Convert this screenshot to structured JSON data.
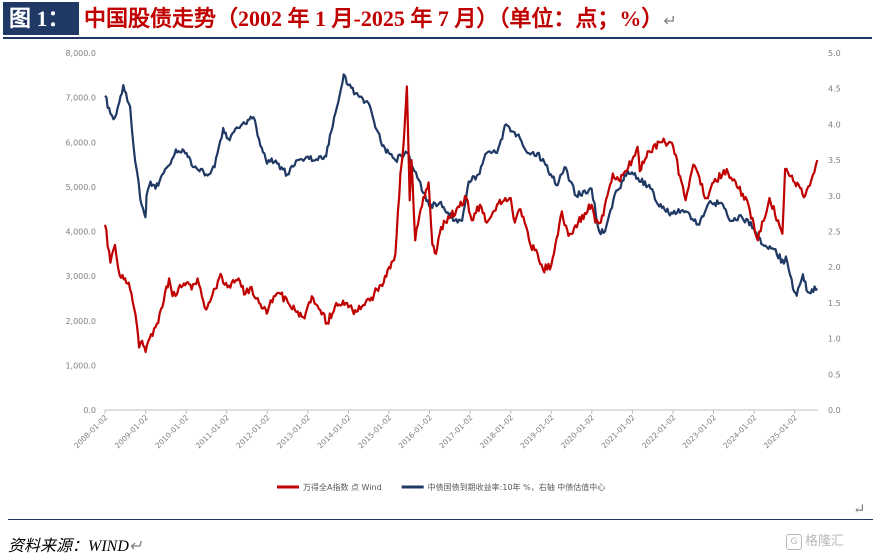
{
  "header": {
    "label": "图 1：",
    "title": "中国股债走势（2002 年 1 月-2025 年 7 月）（单位：点；%）",
    "return_mark": "↵"
  },
  "footer": {
    "source": "资料来源：WIND",
    "return_mark": "↵",
    "watermark": "格隆汇"
  },
  "colors": {
    "equity": "#c00000",
    "bond": "#1f3864",
    "axis_text": "#7f7f7f",
    "header_bg": "#1f3864"
  },
  "chart_data": {
    "type": "line",
    "x_dates": [
      "2008-01-02",
      "2009-01-02",
      "2010-01-02",
      "2011-01-02",
      "2012-01-02",
      "2013-01-02",
      "2014-01-02",
      "2015-01-02",
      "2016-01-02",
      "2017-01-02",
      "2018-01-02",
      "2019-01-02",
      "2020-01-02",
      "2021-01-02",
      "2022-01-02",
      "2023-01-02",
      "2024-01-02",
      "2025-01-02"
    ],
    "x_ticks": [
      "2008-01-02",
      "2009-01-02",
      "2010-01-02",
      "2011-01-02",
      "2012-01-02",
      "2013-01-02",
      "2014-01-02",
      "2015-01-02",
      "2016-01-02",
      "2017-01-02",
      "2018-01-02",
      "2019-01-02",
      "2020-01-02",
      "2021-01-02",
      "2022-01-02",
      "2023-01-02",
      "2024-01-02",
      "2025-01-02"
    ],
    "y_left_ticks": [
      "0.0",
      "1,000.0",
      "2,000.0",
      "3,000.0",
      "4,000.0",
      "5,000.0",
      "6,000.0",
      "7,000.0",
      "8,000.0"
    ],
    "y_right_ticks": [
      "0.0",
      "0.5",
      "1.0",
      "1.5",
      "2.0",
      "2.5",
      "3.0",
      "3.5",
      "4.0",
      "4.5",
      "5.0"
    ],
    "ylim_left": [
      0,
      8000
    ],
    "ylim_right": [
      0,
      5.0
    ],
    "grid": false,
    "legend_position": "bottom-center",
    "series": [
      {
        "name": "万得全A指数 点 Wind",
        "axis": "left",
        "points": [
          [
            "2008-01-02",
            4150
          ],
          [
            "2008-02-20",
            3300
          ],
          [
            "2008-04-01",
            3700
          ],
          [
            "2008-05-15",
            3000
          ],
          [
            "2008-07-01",
            2950
          ],
          [
            "2008-08-15",
            2700
          ],
          [
            "2008-09-18",
            2300
          ],
          [
            "2008-10-15",
            1900
          ],
          [
            "2008-11-04",
            1400
          ],
          [
            "2008-12-01",
            1550
          ],
          [
            "2009-01-02",
            1300
          ],
          [
            "2009-02-20",
            1700
          ],
          [
            "2009-04-01",
            1850
          ],
          [
            "2009-06-01",
            2300
          ],
          [
            "2009-08-01",
            2950
          ],
          [
            "2009-09-01",
            2550
          ],
          [
            "2009-11-20",
            2750
          ],
          [
            "2010-01-04",
            2850
          ],
          [
            "2010-02-20",
            2700
          ],
          [
            "2010-04-15",
            2950
          ],
          [
            "2010-07-01",
            2250
          ],
          [
            "2010-08-15",
            2500
          ],
          [
            "2010-11-08",
            3050
          ],
          [
            "2010-12-01",
            2850
          ],
          [
            "2011-01-10",
            2750
          ],
          [
            "2011-04-18",
            2950
          ],
          [
            "2011-06-20",
            2600
          ],
          [
            "2011-08-01",
            2750
          ],
          [
            "2011-10-20",
            2400
          ],
          [
            "2011-12-20",
            2250
          ],
          [
            "2012-01-05",
            2200
          ],
          [
            "2012-03-01",
            2550
          ],
          [
            "2012-05-01",
            2600
          ],
          [
            "2012-08-01",
            2300
          ],
          [
            "2012-12-03",
            2050
          ],
          [
            "2013-01-04",
            2350
          ],
          [
            "2013-02-06",
            2550
          ],
          [
            "2013-06-25",
            1950
          ],
          [
            "2013-09-15",
            2400
          ],
          [
            "2013-11-15",
            2450
          ],
          [
            "2014-01-02",
            2300
          ],
          [
            "2014-03-15",
            2200
          ],
          [
            "2014-05-15",
            2350
          ],
          [
            "2014-07-15",
            2450
          ],
          [
            "2014-09-15",
            2700
          ],
          [
            "2014-11-15",
            2850
          ],
          [
            "2015-01-02",
            3200
          ],
          [
            "2015-03-01",
            3500
          ],
          [
            "2015-04-15",
            5300
          ],
          [
            "2015-05-15",
            6000
          ],
          [
            "2015-06-12",
            7250
          ],
          [
            "2015-07-08",
            4700
          ],
          [
            "2015-07-24",
            5600
          ],
          [
            "2015-08-26",
            3800
          ],
          [
            "2015-10-15",
            4500
          ],
          [
            "2015-12-25",
            5100
          ],
          [
            "2016-01-28",
            3700
          ],
          [
            "2016-02-29",
            3500
          ],
          [
            "2016-04-15",
            4100
          ],
          [
            "2016-07-01",
            4300
          ],
          [
            "2016-09-01",
            4500
          ],
          [
            "2016-11-29",
            4750
          ],
          [
            "2017-01-16",
            4250
          ],
          [
            "2017-04-01",
            4600
          ],
          [
            "2017-06-01",
            4200
          ],
          [
            "2017-09-01",
            4600
          ],
          [
            "2017-11-14",
            4750
          ],
          [
            "2018-01-02",
            4750
          ],
          [
            "2018-02-09",
            4200
          ],
          [
            "2018-04-01",
            4500
          ],
          [
            "2018-06-29",
            3700
          ],
          [
            "2018-09-01",
            3500
          ],
          [
            "2018-10-19",
            3150
          ],
          [
            "2019-01-03",
            3250
          ],
          [
            "2019-04-08",
            4450
          ],
          [
            "2019-06-06",
            3900
          ],
          [
            "2019-09-01",
            4200
          ],
          [
            "2019-12-31",
            4600
          ],
          [
            "2020-02-03",
            4200
          ],
          [
            "2020-03-23",
            4200
          ],
          [
            "2020-07-09",
            5300
          ],
          [
            "2020-09-01",
            5150
          ],
          [
            "2020-12-31",
            5600
          ],
          [
            "2021-02-18",
            5900
          ],
          [
            "2021-03-09",
            5350
          ],
          [
            "2021-06-01",
            5800
          ],
          [
            "2021-09-14",
            6000
          ],
          [
            "2021-12-13",
            6000
          ],
          [
            "2022-01-04",
            5900
          ],
          [
            "2022-04-26",
            4700
          ],
          [
            "2022-07-04",
            5500
          ],
          [
            "2022-10-31",
            4750
          ],
          [
            "2023-01-03",
            5100
          ],
          [
            "2023-05-01",
            5400
          ],
          [
            "2023-08-01",
            5000
          ],
          [
            "2023-11-01",
            4700
          ],
          [
            "2024-02-05",
            3800
          ],
          [
            "2024-05-20",
            4750
          ],
          [
            "2024-09-13",
            3950
          ],
          [
            "2024-10-08",
            5400
          ],
          [
            "2024-11-15",
            5250
          ],
          [
            "2025-01-02",
            5100
          ],
          [
            "2025-04-07",
            4800
          ],
          [
            "2025-06-01",
            5150
          ],
          [
            "2025-07-25",
            5600
          ]
        ]
      },
      {
        "name": "中债国债到期收益率:10年 %，右轴 中债估值中心",
        "axis": "right",
        "points": [
          [
            "2008-01-02",
            4.4
          ],
          [
            "2008-02-20",
            4.15
          ],
          [
            "2008-04-01",
            4.1
          ],
          [
            "2008-06-15",
            4.55
          ],
          [
            "2008-08-15",
            4.25
          ],
          [
            "2008-09-15",
            3.7
          ],
          [
            "2008-10-15",
            3.35
          ],
          [
            "2008-11-15",
            2.95
          ],
          [
            "2008-12-31",
            2.7
          ],
          [
            "2009-01-10",
            3.0
          ],
          [
            "2009-02-15",
            3.2
          ],
          [
            "2009-04-01",
            3.1
          ],
          [
            "2009-06-01",
            3.3
          ],
          [
            "2009-08-15",
            3.45
          ],
          [
            "2009-10-01",
            3.65
          ],
          [
            "2009-12-01",
            3.65
          ],
          [
            "2010-01-04",
            3.6
          ],
          [
            "2010-03-15",
            3.4
          ],
          [
            "2010-07-01",
            3.3
          ],
          [
            "2010-09-15",
            3.4
          ],
          [
            "2010-12-01",
            3.95
          ],
          [
            "2011-01-15",
            3.8
          ],
          [
            "2011-04-15",
            3.95
          ],
          [
            "2011-08-31",
            4.1
          ],
          [
            "2011-11-01",
            3.7
          ],
          [
            "2011-12-31",
            3.45
          ],
          [
            "2012-01-15",
            3.5
          ],
          [
            "2012-04-01",
            3.45
          ],
          [
            "2012-07-01",
            3.3
          ],
          [
            "2012-10-01",
            3.5
          ],
          [
            "2012-12-31",
            3.55
          ],
          [
            "2013-04-01",
            3.5
          ],
          [
            "2013-06-15",
            3.55
          ],
          [
            "2013-08-01",
            3.9
          ],
          [
            "2013-11-20",
            4.7
          ],
          [
            "2014-01-02",
            4.55
          ],
          [
            "2014-04-01",
            4.4
          ],
          [
            "2014-07-01",
            4.3
          ],
          [
            "2014-11-01",
            3.7
          ],
          [
            "2014-12-31",
            3.6
          ],
          [
            "2015-03-01",
            3.5
          ],
          [
            "2015-06-15",
            3.6
          ],
          [
            "2015-09-15",
            3.25
          ],
          [
            "2015-12-31",
            2.85
          ],
          [
            "2016-04-01",
            2.9
          ],
          [
            "2016-08-15",
            2.65
          ],
          [
            "2016-10-21",
            2.65
          ],
          [
            "2016-12-20",
            3.2
          ],
          [
            "2017-03-15",
            3.3
          ],
          [
            "2017-06-01",
            3.6
          ],
          [
            "2017-09-01",
            3.6
          ],
          [
            "2017-11-22",
            4.0
          ],
          [
            "2018-01-02",
            3.9
          ],
          [
            "2018-03-01",
            3.85
          ],
          [
            "2018-06-01",
            3.6
          ],
          [
            "2018-09-01",
            3.6
          ],
          [
            "2018-12-31",
            3.3
          ],
          [
            "2019-03-01",
            3.15
          ],
          [
            "2019-05-01",
            3.4
          ],
          [
            "2019-08-15",
            3.0
          ],
          [
            "2019-12-31",
            3.1
          ],
          [
            "2020-03-09",
            2.5
          ],
          [
            "2020-04-30",
            2.5
          ],
          [
            "2020-07-15",
            2.95
          ],
          [
            "2020-11-20",
            3.35
          ],
          [
            "2021-02-20",
            3.25
          ],
          [
            "2021-06-15",
            3.1
          ],
          [
            "2021-09-01",
            2.85
          ],
          [
            "2021-12-31",
            2.75
          ],
          [
            "2022-04-01",
            2.8
          ],
          [
            "2022-08-15",
            2.6
          ],
          [
            "2022-11-21",
            2.9
          ],
          [
            "2023-03-01",
            2.9
          ],
          [
            "2023-06-15",
            2.65
          ],
          [
            "2023-09-15",
            2.7
          ],
          [
            "2023-12-31",
            2.55
          ],
          [
            "2024-02-01",
            2.45
          ],
          [
            "2024-04-01",
            2.3
          ],
          [
            "2024-07-01",
            2.25
          ],
          [
            "2024-09-27",
            2.05
          ],
          [
            "2024-10-15",
            2.15
          ],
          [
            "2024-12-31",
            1.65
          ],
          [
            "2025-01-20",
            1.6
          ],
          [
            "2025-03-17",
            1.9
          ],
          [
            "2025-05-01",
            1.65
          ],
          [
            "2025-07-25",
            1.7
          ]
        ]
      }
    ]
  }
}
